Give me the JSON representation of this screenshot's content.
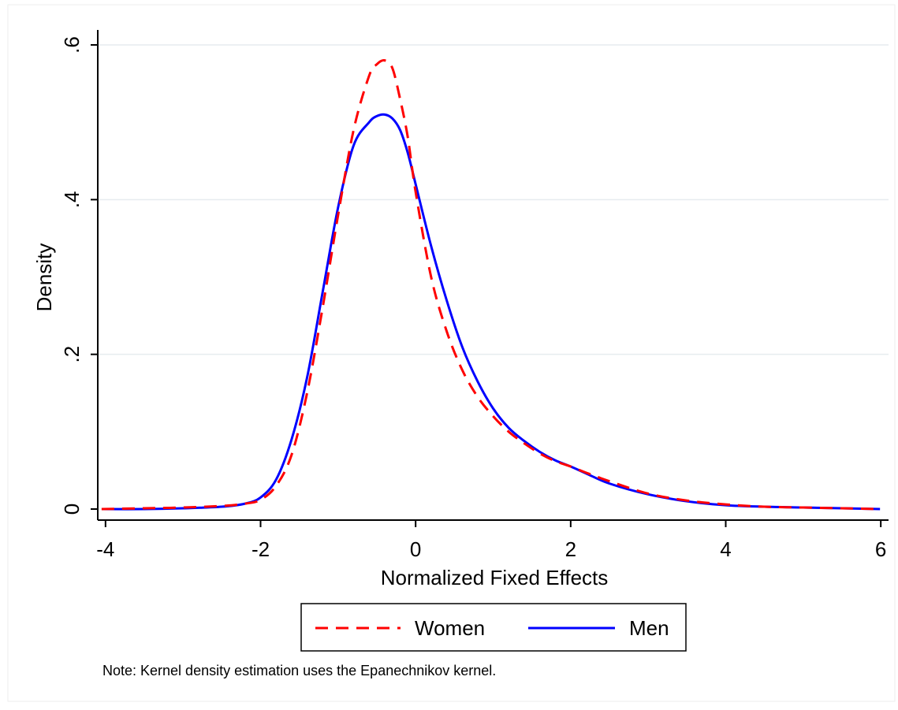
{
  "chart_data": {
    "type": "line",
    "title": "",
    "xlabel": "Normalized Fixed Effects",
    "ylabel": "Density",
    "xlim": [
      -4.1,
      6.1
    ],
    "ylim": [
      0,
      0.6
    ],
    "x_ticks": [
      -4,
      -2,
      0,
      2,
      4,
      6
    ],
    "x_tick_labels": [
      "-4",
      "-2",
      "0",
      "2",
      "4",
      "6"
    ],
    "y_ticks": [
      0,
      0.2,
      0.4,
      0.6
    ],
    "y_tick_labels": [
      "0",
      ".2",
      ".4",
      ".6"
    ],
    "grid": "horizontal",
    "legend_position": "bottom",
    "note": "Note: Kernel density estimation uses the Epanechnikov kernel.",
    "series": [
      {
        "name": "Women",
        "color": "#ff0000",
        "line_style": "dashed",
        "x": [
          -4.05,
          -3.5,
          -3.0,
          -2.5,
          -2.2,
          -2.0,
          -1.8,
          -1.6,
          -1.4,
          -1.2,
          -1.0,
          -0.8,
          -0.6,
          -0.5,
          -0.4,
          -0.3,
          -0.2,
          -0.1,
          0.0,
          0.2,
          0.4,
          0.6,
          0.8,
          1.0,
          1.2,
          1.4,
          1.6,
          1.8,
          2.0,
          2.2,
          2.5,
          3.0,
          3.5,
          4.0,
          4.5,
          5.0,
          5.5,
          5.99
        ],
        "y": [
          0.0,
          0.001,
          0.002,
          0.004,
          0.007,
          0.012,
          0.03,
          0.07,
          0.15,
          0.26,
          0.38,
          0.49,
          0.56,
          0.575,
          0.58,
          0.57,
          0.53,
          0.48,
          0.41,
          0.3,
          0.23,
          0.18,
          0.145,
          0.12,
          0.1,
          0.085,
          0.072,
          0.062,
          0.055,
          0.047,
          0.036,
          0.02,
          0.011,
          0.006,
          0.003,
          0.002,
          0.001,
          0.0
        ]
      },
      {
        "name": "Men",
        "color": "#0000ff",
        "line_style": "solid",
        "x": [
          -4.05,
          -3.5,
          -3.0,
          -2.5,
          -2.2,
          -2.0,
          -1.8,
          -1.6,
          -1.4,
          -1.2,
          -1.0,
          -0.8,
          -0.6,
          -0.5,
          -0.4,
          -0.3,
          -0.2,
          -0.1,
          0.0,
          0.2,
          0.4,
          0.6,
          0.8,
          1.0,
          1.2,
          1.4,
          1.6,
          1.8,
          2.0,
          2.2,
          2.5,
          3.0,
          3.5,
          4.0,
          4.5,
          5.0,
          5.5,
          5.99
        ],
        "y": [
          0.0,
          0.0,
          0.001,
          0.003,
          0.007,
          0.015,
          0.038,
          0.09,
          0.17,
          0.28,
          0.39,
          0.47,
          0.5,
          0.508,
          0.51,
          0.505,
          0.49,
          0.46,
          0.42,
          0.34,
          0.27,
          0.21,
          0.165,
          0.13,
          0.105,
          0.088,
          0.074,
          0.063,
          0.055,
          0.046,
          0.033,
          0.019,
          0.01,
          0.005,
          0.003,
          0.002,
          0.001,
          0.0
        ]
      }
    ]
  }
}
